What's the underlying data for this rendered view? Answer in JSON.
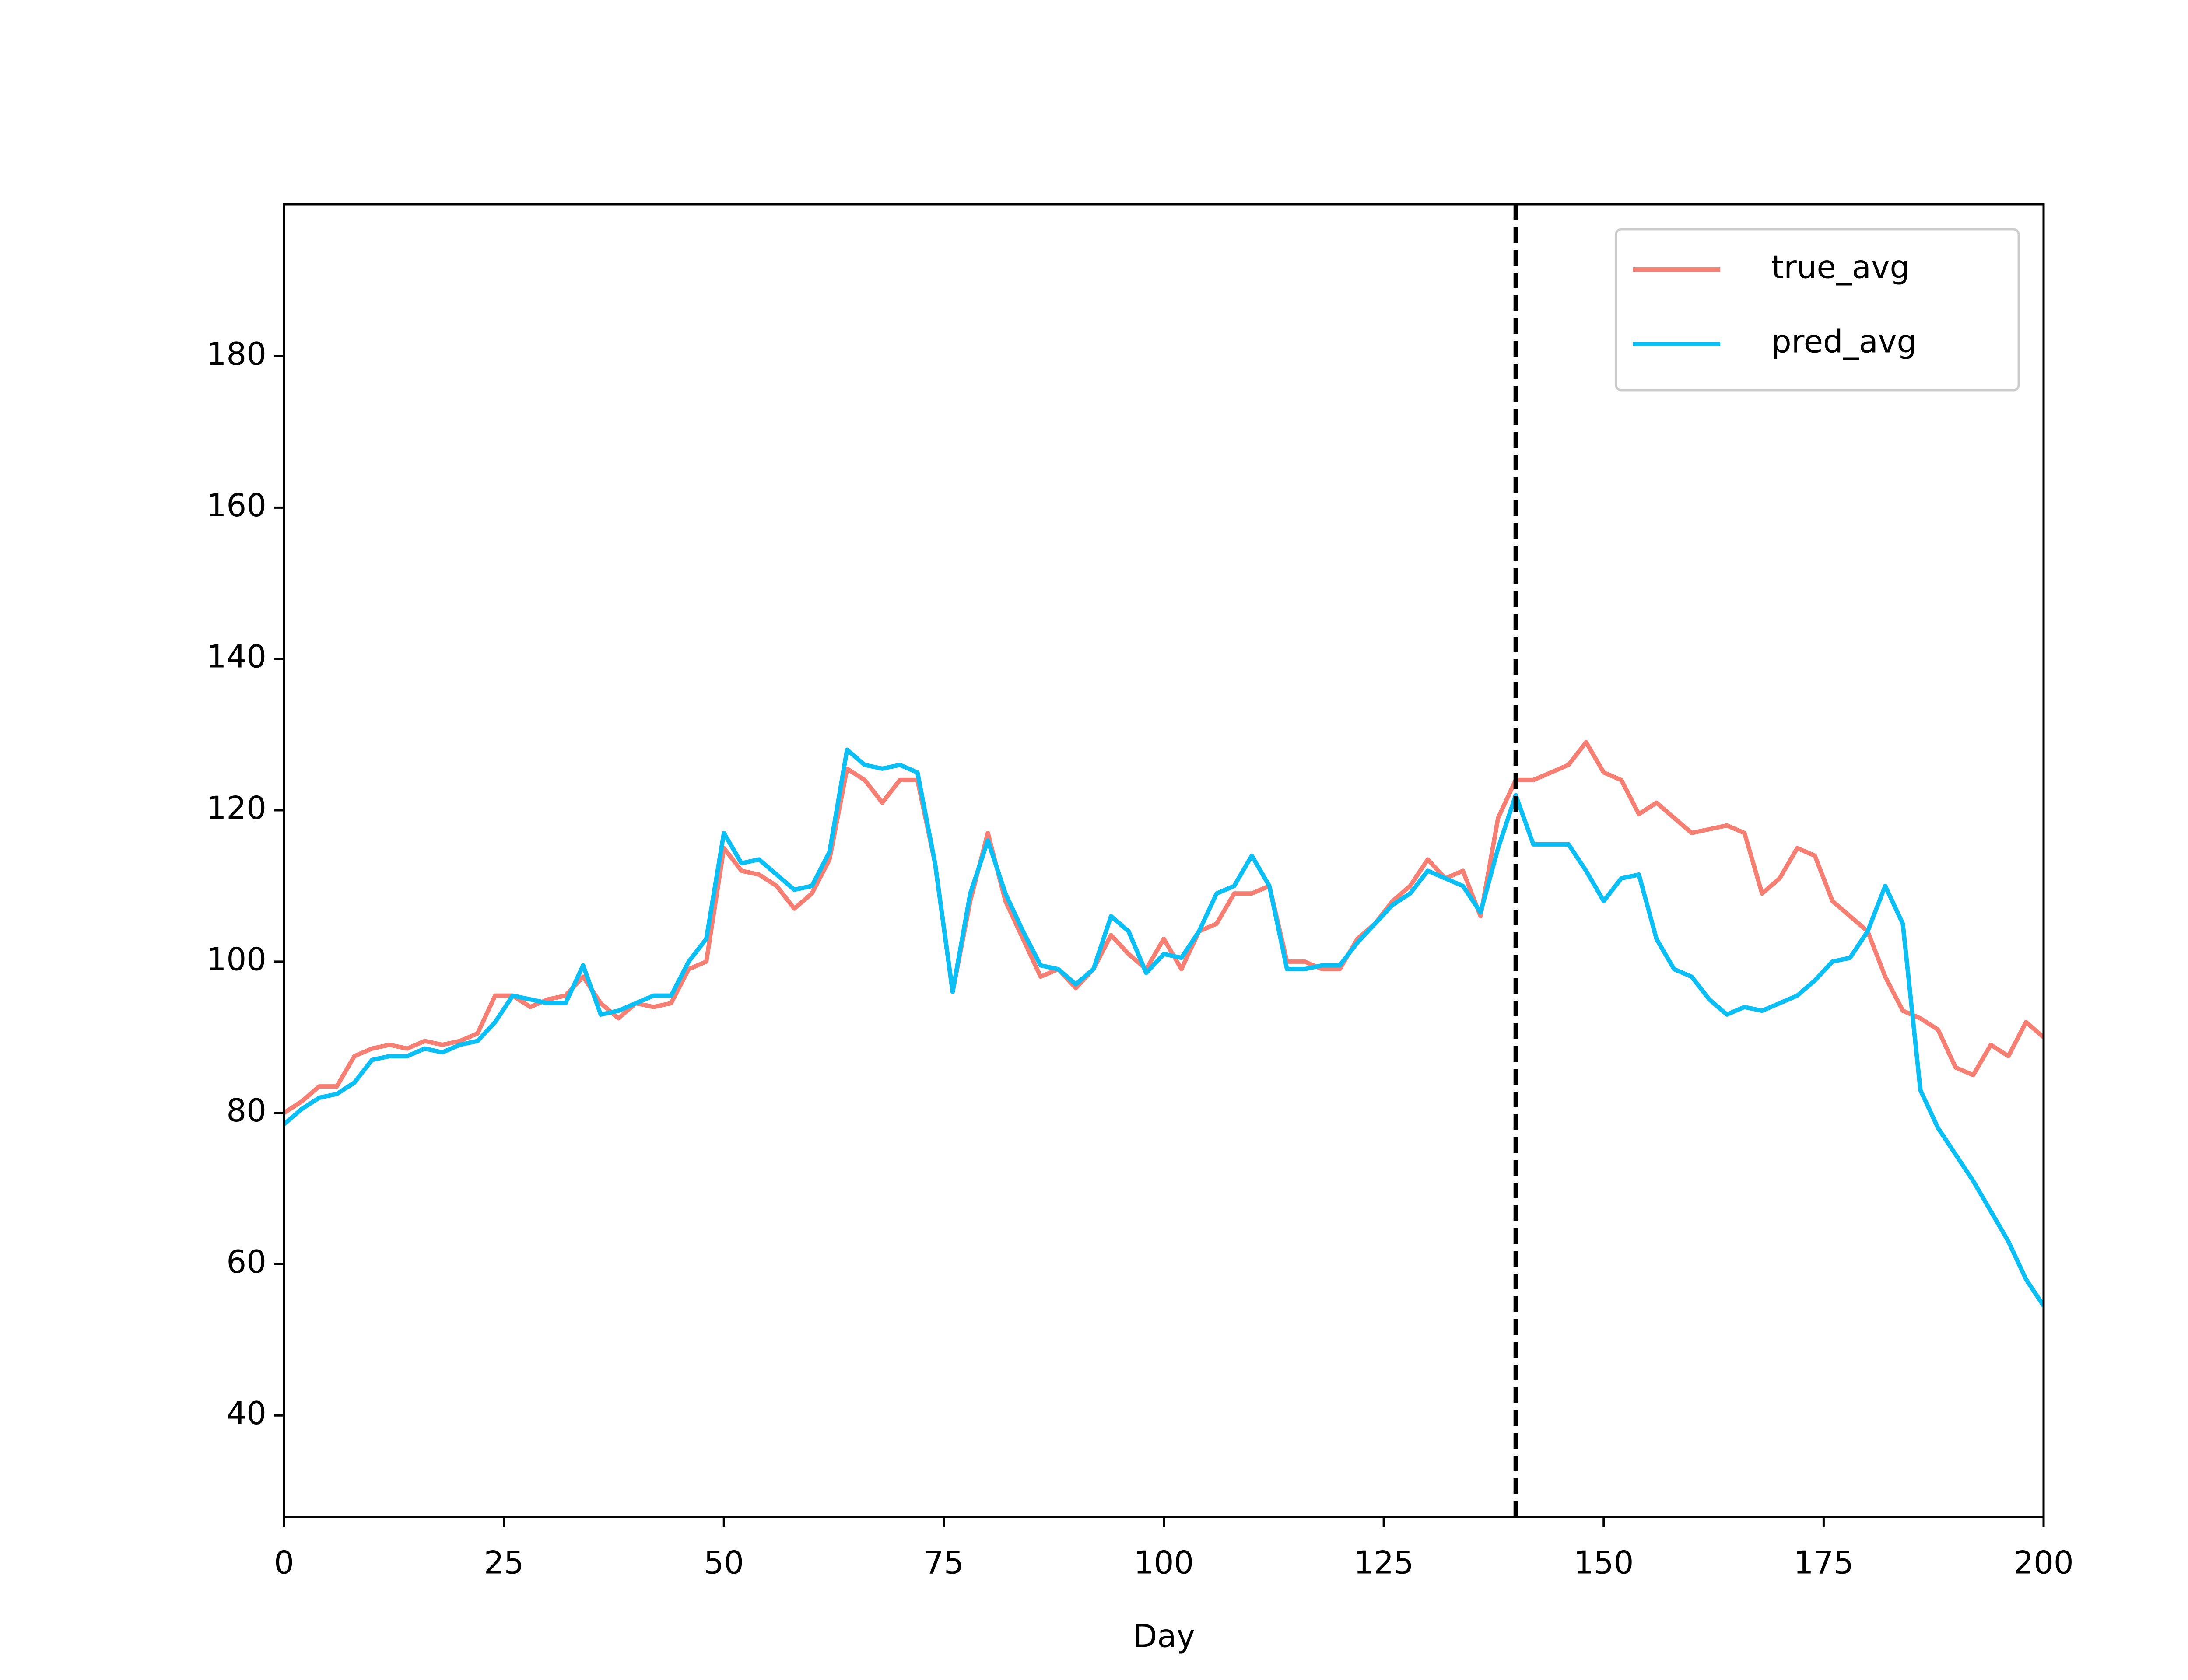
{
  "chart_data": {
    "type": "line",
    "x_label": "Day",
    "x": [
      0,
      2,
      4,
      6,
      8,
      10,
      12,
      14,
      16,
      18,
      20,
      22,
      24,
      26,
      28,
      30,
      32,
      34,
      36,
      38,
      40,
      42,
      44,
      46,
      48,
      50,
      52,
      54,
      56,
      58,
      60,
      62,
      64,
      66,
      68,
      70,
      72,
      74,
      76,
      78,
      80,
      82,
      84,
      86,
      88,
      90,
      92,
      94,
      96,
      98,
      100,
      102,
      104,
      106,
      108,
      110,
      112,
      114,
      116,
      118,
      120,
      122,
      124,
      126,
      128,
      130,
      132,
      134,
      136,
      138,
      140,
      142,
      144,
      146,
      148,
      150,
      152,
      154,
      156,
      158,
      160,
      162,
      164,
      166,
      168,
      170,
      172,
      174,
      176,
      178,
      180,
      182,
      184,
      186,
      188,
      190,
      192,
      194,
      196,
      198,
      200
    ],
    "series": [
      {
        "name": "true_avg",
        "color": "#f57f72",
        "values": [
          80,
          81.5,
          83.5,
          83.5,
          87.5,
          88.5,
          89,
          88.5,
          89.5,
          89,
          89.5,
          90.5,
          95.5,
          95.5,
          94,
          95,
          95.5,
          98,
          94.5,
          92.5,
          94.5,
          94,
          94.5,
          99,
          100,
          115,
          112,
          111.5,
          110,
          107,
          109,
          113.5,
          125.5,
          124,
          121,
          124,
          124,
          113,
          96,
          108,
          117,
          108,
          103,
          98,
          99,
          96.5,
          99,
          103.5,
          101,
          99,
          103,
          99,
          104,
          105,
          109,
          109,
          110,
          100,
          100,
          99,
          99,
          103,
          105,
          108,
          110,
          113.5,
          111,
          112,
          106,
          119,
          124,
          124,
          125,
          126,
          129,
          125,
          124,
          119.5,
          121,
          119,
          117,
          117.5,
          118,
          117,
          109,
          111,
          115,
          114,
          108,
          106,
          104,
          98,
          93.5,
          92.5,
          91,
          86,
          85,
          89,
          87.5,
          92,
          90
        ]
      },
      {
        "name": "pred_avg",
        "color": "#0bbff5",
        "values": [
          78.5,
          80.5,
          82,
          82.5,
          84,
          87,
          87.5,
          87.5,
          88.5,
          88,
          89,
          89.5,
          92,
          95.5,
          95,
          94.5,
          94.5,
          99.5,
          93,
          93.5,
          94.5,
          95.5,
          95.5,
          100,
          103,
          117,
          113,
          113.5,
          111.5,
          109.5,
          110,
          114.5,
          128,
          126,
          125.5,
          126,
          125,
          113,
          96,
          109,
          116,
          109,
          104,
          99.5,
          99,
          97,
          99,
          106,
          104,
          98.5,
          101,
          100.5,
          104,
          109,
          110,
          114,
          110,
          99,
          99,
          99.5,
          99.5,
          102.5,
          105,
          107.5,
          109,
          112,
          111,
          110,
          106.5,
          115,
          122,
          115.5,
          115.5,
          115.5,
          112,
          108,
          111,
          111.5,
          103,
          99,
          98,
          95,
          93,
          94,
          93.5,
          94.5,
          95.5,
          97.5,
          100,
          100.5,
          104,
          110,
          105,
          83,
          78,
          74.5,
          71,
          67,
          63,
          58,
          54.5
        ]
      }
    ],
    "vline": 140,
    "xlim": [
      0,
      200
    ],
    "xticks": [
      0,
      25,
      50,
      75,
      100,
      125,
      150,
      175,
      200
    ],
    "ylim": [
      26.6,
      200.1
    ],
    "yticks": [
      40,
      60,
      80,
      100,
      120,
      140,
      160,
      180
    ],
    "legend": "upper right"
  }
}
